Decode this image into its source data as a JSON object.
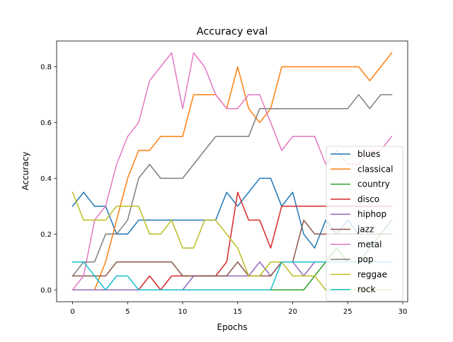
{
  "chart_data": {
    "type": "line",
    "title": "Accuracy eval",
    "xlabel": "Epochs",
    "ylabel": "Accuracy",
    "xlim": [
      -1.45,
      30.45
    ],
    "ylim": [
      -0.0425,
      0.8925
    ],
    "xticks": [
      0,
      5,
      10,
      15,
      20,
      25,
      30
    ],
    "yticks": [
      0.0,
      0.2,
      0.4,
      0.6,
      0.8
    ],
    "xtick_labels": [
      "0",
      "5",
      "10",
      "15",
      "20",
      "25",
      "30"
    ],
    "ytick_labels": [
      "0.0",
      "0.2",
      "0.4",
      "0.6",
      "0.8"
    ],
    "grid": false,
    "legend_position": "center-right",
    "x": [
      0,
      1,
      2,
      3,
      4,
      5,
      6,
      7,
      8,
      9,
      10,
      11,
      12,
      13,
      14,
      15,
      16,
      17,
      18,
      19,
      20,
      21,
      22,
      23,
      24,
      25,
      26,
      27,
      28,
      29
    ],
    "series": [
      {
        "name": "blues",
        "color": "#1f77b4",
        "values": [
          0.3,
          0.35,
          0.3,
          0.3,
          0.2,
          0.2,
          0.25,
          0.25,
          0.25,
          0.25,
          0.25,
          0.25,
          0.25,
          0.25,
          0.35,
          0.3,
          0.35,
          0.4,
          0.4,
          0.3,
          0.35,
          0.2,
          0.15,
          0.25,
          0.2,
          0.25,
          0.2,
          0.2,
          0.2,
          0.25
        ]
      },
      {
        "name": "classical",
        "color": "#ff7f0e",
        "values": [
          0.0,
          0.0,
          0.0,
          0.1,
          0.25,
          0.4,
          0.5,
          0.5,
          0.55,
          0.55,
          0.55,
          0.7,
          0.7,
          0.7,
          0.65,
          0.8,
          0.65,
          0.6,
          0.65,
          0.8,
          0.8,
          0.8,
          0.8,
          0.8,
          0.8,
          0.8,
          0.8,
          0.75,
          0.8,
          0.85
        ]
      },
      {
        "name": "country",
        "color": "#2ca02c",
        "values": [
          0.0,
          0.0,
          0.0,
          0.0,
          0.0,
          0.0,
          0.0,
          0.0,
          0.0,
          0.0,
          0.0,
          0.0,
          0.0,
          0.0,
          0.0,
          0.0,
          0.0,
          0.0,
          0.0,
          0.0,
          0.0,
          0.0,
          0.05,
          0.1,
          0.15,
          0.1,
          0.1,
          0.15,
          0.2,
          0.25
        ]
      },
      {
        "name": "disco",
        "color": "#d62728",
        "values": [
          0.0,
          0.0,
          0.0,
          0.0,
          0.0,
          0.0,
          0.0,
          0.05,
          0.0,
          0.05,
          0.05,
          0.05,
          0.05,
          0.05,
          0.1,
          0.35,
          0.25,
          0.25,
          0.15,
          0.3,
          0.3,
          0.3,
          0.3,
          0.3,
          0.3,
          0.3,
          0.3,
          0.3,
          0.3,
          0.3
        ]
      },
      {
        "name": "hiphop",
        "color": "#9467bd",
        "values": [
          0.0,
          0.0,
          0.0,
          0.0,
          0.0,
          0.0,
          0.0,
          0.0,
          0.0,
          0.0,
          0.0,
          0.05,
          0.05,
          0.05,
          0.05,
          0.05,
          0.05,
          0.1,
          0.05,
          0.1,
          0.1,
          0.05,
          0.1,
          0.1,
          0.1,
          0.1,
          0.1,
          0.1,
          0.1,
          0.1
        ]
      },
      {
        "name": "jazz",
        "color": "#8c564b",
        "values": [
          0.05,
          0.05,
          0.05,
          0.05,
          0.1,
          0.1,
          0.1,
          0.1,
          0.1,
          0.1,
          0.05,
          0.05,
          0.05,
          0.05,
          0.05,
          0.1,
          0.05,
          0.05,
          0.05,
          0.1,
          0.1,
          0.25,
          0.2,
          0.2,
          0.2,
          0.2,
          0.2,
          0.2,
          0.2,
          0.2
        ]
      },
      {
        "name": "metal",
        "color": "#e377c2",
        "values": [
          0.0,
          0.05,
          0.25,
          0.3,
          0.45,
          0.55,
          0.6,
          0.75,
          0.8,
          0.85,
          0.65,
          0.85,
          0.8,
          0.7,
          0.65,
          0.65,
          0.7,
          0.7,
          0.6,
          0.5,
          0.55,
          0.55,
          0.55,
          0.45,
          0.5,
          0.45,
          0.45,
          0.5,
          0.5,
          0.55
        ]
      },
      {
        "name": "pop",
        "color": "#7f7f7f",
        "values": [
          0.05,
          0.1,
          0.1,
          0.2,
          0.2,
          0.25,
          0.4,
          0.45,
          0.4,
          0.4,
          0.4,
          0.45,
          0.5,
          0.55,
          0.55,
          0.55,
          0.55,
          0.65,
          0.65,
          0.65,
          0.65,
          0.65,
          0.65,
          0.65,
          0.65,
          0.65,
          0.7,
          0.65,
          0.7,
          0.7
        ]
      },
      {
        "name": "reggae",
        "color": "#bcbd22",
        "values": [
          0.35,
          0.25,
          0.25,
          0.25,
          0.3,
          0.3,
          0.3,
          0.2,
          0.2,
          0.25,
          0.15,
          0.15,
          0.25,
          0.25,
          0.2,
          0.15,
          0.05,
          0.05,
          0.1,
          0.1,
          0.05,
          0.05,
          0.05,
          0.0,
          0.0,
          0.0,
          0.0,
          0.0,
          0.0,
          0.0
        ]
      },
      {
        "name": "rock",
        "color": "#17becf",
        "values": [
          0.1,
          0.1,
          0.05,
          0.0,
          0.05,
          0.05,
          0.0,
          0.0,
          0.0,
          0.0,
          0.0,
          0.0,
          0.0,
          0.0,
          0.0,
          0.0,
          0.0,
          0.0,
          0.0,
          0.1,
          0.1,
          0.1,
          0.1,
          0.1,
          0.1,
          0.1,
          0.1,
          0.1,
          0.1,
          0.1
        ]
      }
    ]
  }
}
